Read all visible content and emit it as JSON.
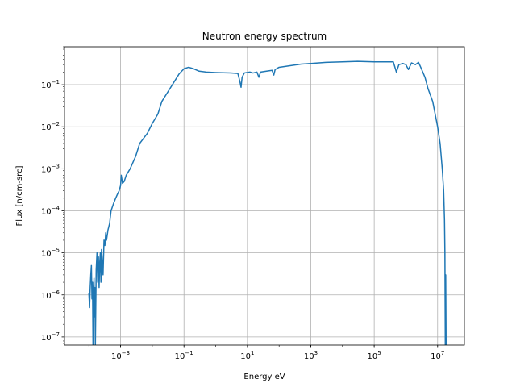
{
  "chart_data": {
    "type": "line",
    "title": "Neutron energy spectrum",
    "xlabel": "Energy eV",
    "ylabel": "Flux [n/cm-src]",
    "xscale": "log",
    "yscale": "log",
    "xlim": [
      1.7e-05,
      70000000.0
    ],
    "ylim": [
      6.4e-08,
      0.8
    ],
    "grid": true,
    "line_color": "#1f77b4",
    "x_ticks": [
      {
        "value": 0.001,
        "base": "10",
        "exp": "−3"
      },
      {
        "value": 0.1,
        "base": "10",
        "exp": "−1"
      },
      {
        "value": 10,
        "base": "10",
        "exp": "1"
      },
      {
        "value": 1000,
        "base": "10",
        "exp": "3"
      },
      {
        "value": 100000,
        "base": "10",
        "exp": "5"
      },
      {
        "value": 10000000,
        "base": "10",
        "exp": "7"
      }
    ],
    "y_ticks": [
      {
        "value": 1e-07,
        "base": "10",
        "exp": "−7"
      },
      {
        "value": 1e-06,
        "base": "10",
        "exp": "−6"
      },
      {
        "value": 1e-05,
        "base": "10",
        "exp": "−5"
      },
      {
        "value": 0.0001,
        "base": "10",
        "exp": "−4"
      },
      {
        "value": 0.001,
        "base": "10",
        "exp": "−3"
      },
      {
        "value": 0.01,
        "base": "10",
        "exp": "−2"
      },
      {
        "value": 0.1,
        "base": "10",
        "exp": "−1"
      }
    ],
    "series": [
      {
        "points": [
          [
            0.0001,
            1.1e-06
          ],
          [
            0.000105,
            5e-07
          ],
          [
            0.00011,
            1.5e-06
          ],
          [
            0.000115,
            3e-06
          ],
          [
            0.00012,
            5e-06
          ],
          [
            0.000125,
            8e-07
          ],
          [
            0.00013,
            2e-06
          ],
          [
            0.000135,
            6e-08
          ],
          [
            0.00014,
            1e-06
          ],
          [
            0.000145,
            2.5e-06
          ],
          [
            0.00015,
            3e-07
          ],
          [
            0.000155,
            1.5e-06
          ],
          [
            0.00016,
            6e-08
          ],
          [
            0.00017,
            4e-06
          ],
          [
            0.00018,
            1e-05
          ],
          [
            0.00019,
            2e-06
          ],
          [
            0.0002,
            8e-06
          ],
          [
            0.00021,
            1.5e-06
          ],
          [
            0.00022,
            6e-06
          ],
          [
            0.00023,
            1e-05
          ],
          [
            0.00024,
            2e-06
          ],
          [
            0.00025,
            1.2e-05
          ],
          [
            0.00026,
            8e-06
          ],
          [
            0.00028,
            3e-06
          ],
          [
            0.0003,
            2e-05
          ],
          [
            0.00032,
            1.5e-05
          ],
          [
            0.00034,
            3e-05
          ],
          [
            0.00036,
            2e-05
          ],
          [
            0.0004,
            3.5e-05
          ],
          [
            0.00045,
            5e-05
          ],
          [
            0.0005,
            0.0001
          ],
          [
            0.0006,
            0.00015
          ],
          [
            0.0007,
            0.0002
          ],
          [
            0.0008,
            0.00025
          ],
          [
            0.0009,
            0.0003
          ],
          [
            0.001,
            0.0004
          ],
          [
            0.00105,
            0.0007
          ],
          [
            0.00115,
            0.00045
          ],
          [
            0.0013,
            0.0005
          ],
          [
            0.0015,
            0.0007
          ],
          [
            0.002,
            0.001
          ],
          [
            0.003,
            0.002
          ],
          [
            0.004,
            0.004
          ],
          [
            0.005,
            0.005
          ],
          [
            0.007,
            0.007
          ],
          [
            0.01,
            0.012
          ],
          [
            0.015,
            0.02
          ],
          [
            0.02,
            0.04
          ],
          [
            0.03,
            0.065
          ],
          [
            0.05,
            0.12
          ],
          [
            0.07,
            0.18
          ],
          [
            0.1,
            0.24
          ],
          [
            0.14,
            0.26
          ],
          [
            0.2,
            0.24
          ],
          [
            0.3,
            0.21
          ],
          [
            0.5,
            0.2
          ],
          [
            1.0,
            0.195
          ],
          [
            3.0,
            0.19
          ],
          [
            5.0,
            0.185
          ],
          [
            5.8,
            0.12
          ],
          [
            6.3,
            0.087
          ],
          [
            6.8,
            0.15
          ],
          [
            8.0,
            0.19
          ],
          [
            12.0,
            0.2
          ],
          [
            15.0,
            0.19
          ],
          [
            20.0,
            0.2
          ],
          [
            23.0,
            0.15
          ],
          [
            26.0,
            0.2
          ],
          [
            40.0,
            0.21
          ],
          [
            60.0,
            0.22
          ],
          [
            68.0,
            0.17
          ],
          [
            75.0,
            0.23
          ],
          [
            100.0,
            0.26
          ],
          [
            200.0,
            0.28
          ],
          [
            500.0,
            0.31
          ],
          [
            1000.0,
            0.32
          ],
          [
            3000.0,
            0.34
          ],
          [
            10000.0,
            0.35
          ],
          [
            30000.0,
            0.36
          ],
          [
            100000.0,
            0.35
          ],
          [
            300000.0,
            0.35
          ],
          [
            400000.0,
            0.35
          ],
          [
            500000.0,
            0.2
          ],
          [
            600000.0,
            0.3
          ],
          [
            800000.0,
            0.32
          ],
          [
            1000000.0,
            0.3
          ],
          [
            1200000.0,
            0.23
          ],
          [
            1500000.0,
            0.33
          ],
          [
            2000000.0,
            0.3
          ],
          [
            2500000.0,
            0.34
          ],
          [
            3000000.0,
            0.25
          ],
          [
            4000000.0,
            0.15
          ],
          [
            5000000.0,
            0.08
          ],
          [
            7000000.0,
            0.04
          ],
          [
            10000000.0,
            0.01
          ],
          [
            12000000.0,
            0.004
          ],
          [
            14000000.0,
            0.001
          ],
          [
            15500000.0,
            0.0003
          ],
          [
            16500000.0,
            6e-05
          ],
          [
            17000000.0,
            1e-05
          ],
          [
            17500000.0,
            6e-08
          ],
          [
            18000000.0,
            3e-06
          ],
          [
            18500000.0,
            6e-08
          ]
        ]
      }
    ]
  }
}
